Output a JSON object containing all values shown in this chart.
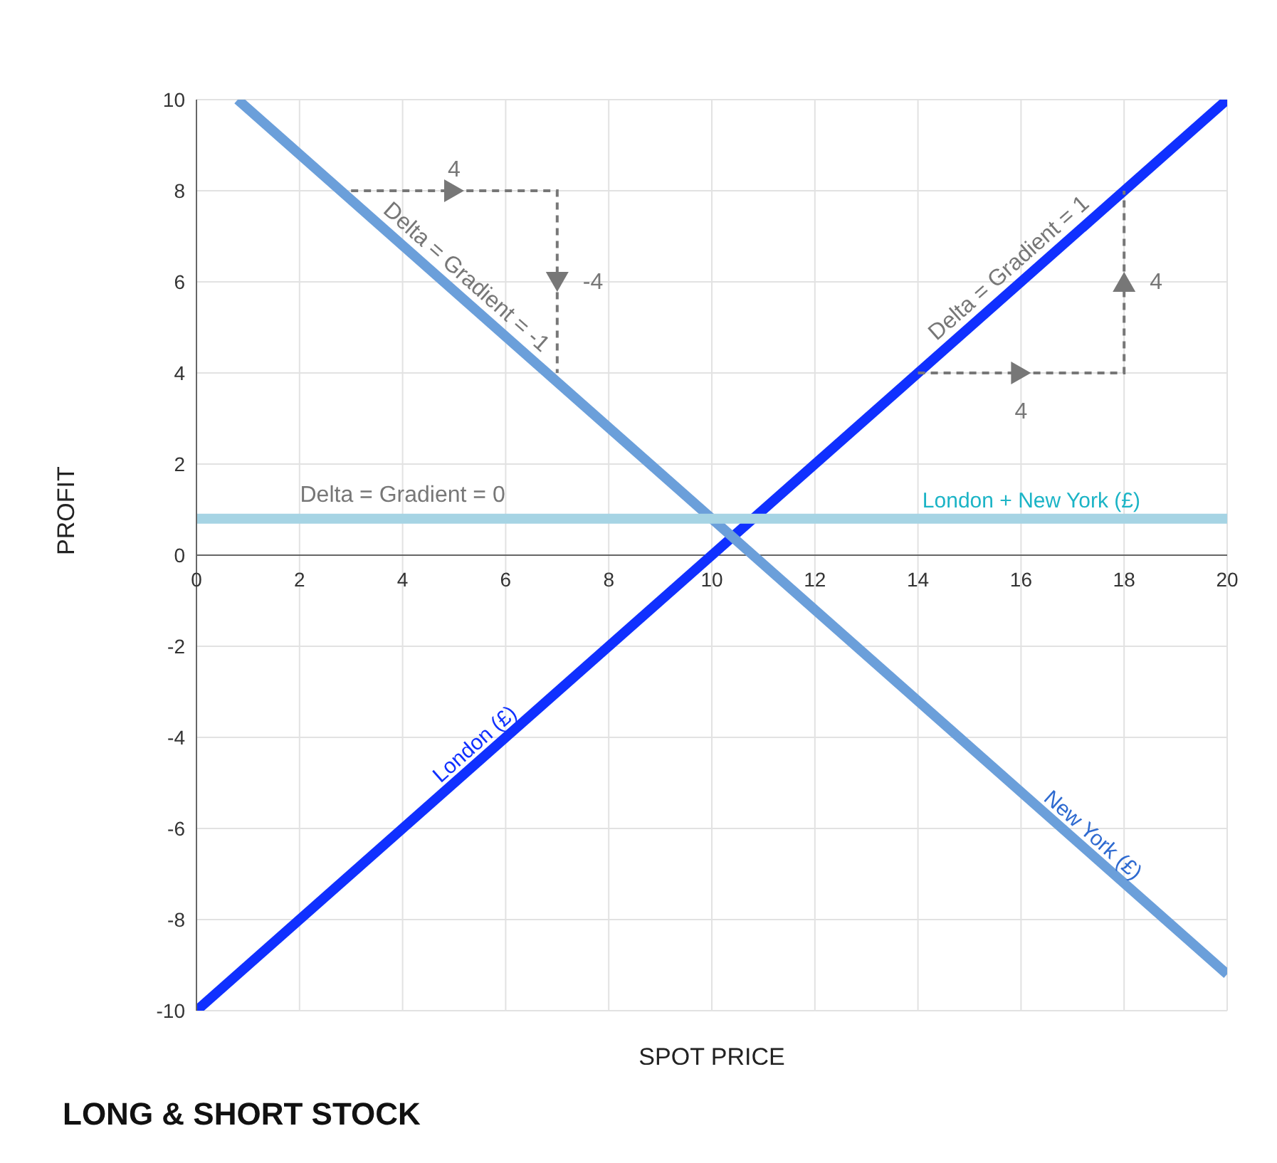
{
  "chart_data": {
    "type": "line",
    "title": "LONG & SHORT STOCK",
    "xlabel": "SPOT PRICE",
    "ylabel": "PROFIT",
    "x": [
      0,
      20
    ],
    "series": [
      {
        "name": "London (£)",
        "color": "#1030ff",
        "values": [
          -10,
          10
        ]
      },
      {
        "name": "New York (£)",
        "color": "#6b9fda",
        "x": [
          0.8,
          20
        ],
        "values": [
          10,
          -9.2
        ]
      },
      {
        "name": "London + New York (£)",
        "color": "#a6d4e4",
        "values": [
          0.8,
          0.8
        ]
      }
    ],
    "annotations": [
      {
        "text": "Delta = Gradient = -1",
        "x": 5,
        "y": 5.8
      },
      {
        "text": "Delta = Gradient = 1",
        "x": 16,
        "y": 6
      },
      {
        "text": "Delta = Gradient = 0",
        "x": 4,
        "y": 0.8
      },
      {
        "text": "4",
        "x": 5,
        "y": 8
      },
      {
        "text": "-4",
        "x": 7,
        "y": 6
      },
      {
        "text": "4",
        "x": 16,
        "y": 4
      },
      {
        "text": "4",
        "x": 18,
        "y": 6
      }
    ],
    "xlim": [
      0,
      20
    ],
    "xticks": [
      0,
      2,
      4,
      6,
      8,
      10,
      12,
      14,
      16,
      18,
      20
    ],
    "ylim": [
      -10,
      10
    ],
    "yticks": [
      -10,
      -8,
      -6,
      -4,
      -2,
      0,
      2,
      4,
      6,
      8,
      10
    ],
    "grid": true,
    "marker": "none",
    "line_style": "solid"
  }
}
